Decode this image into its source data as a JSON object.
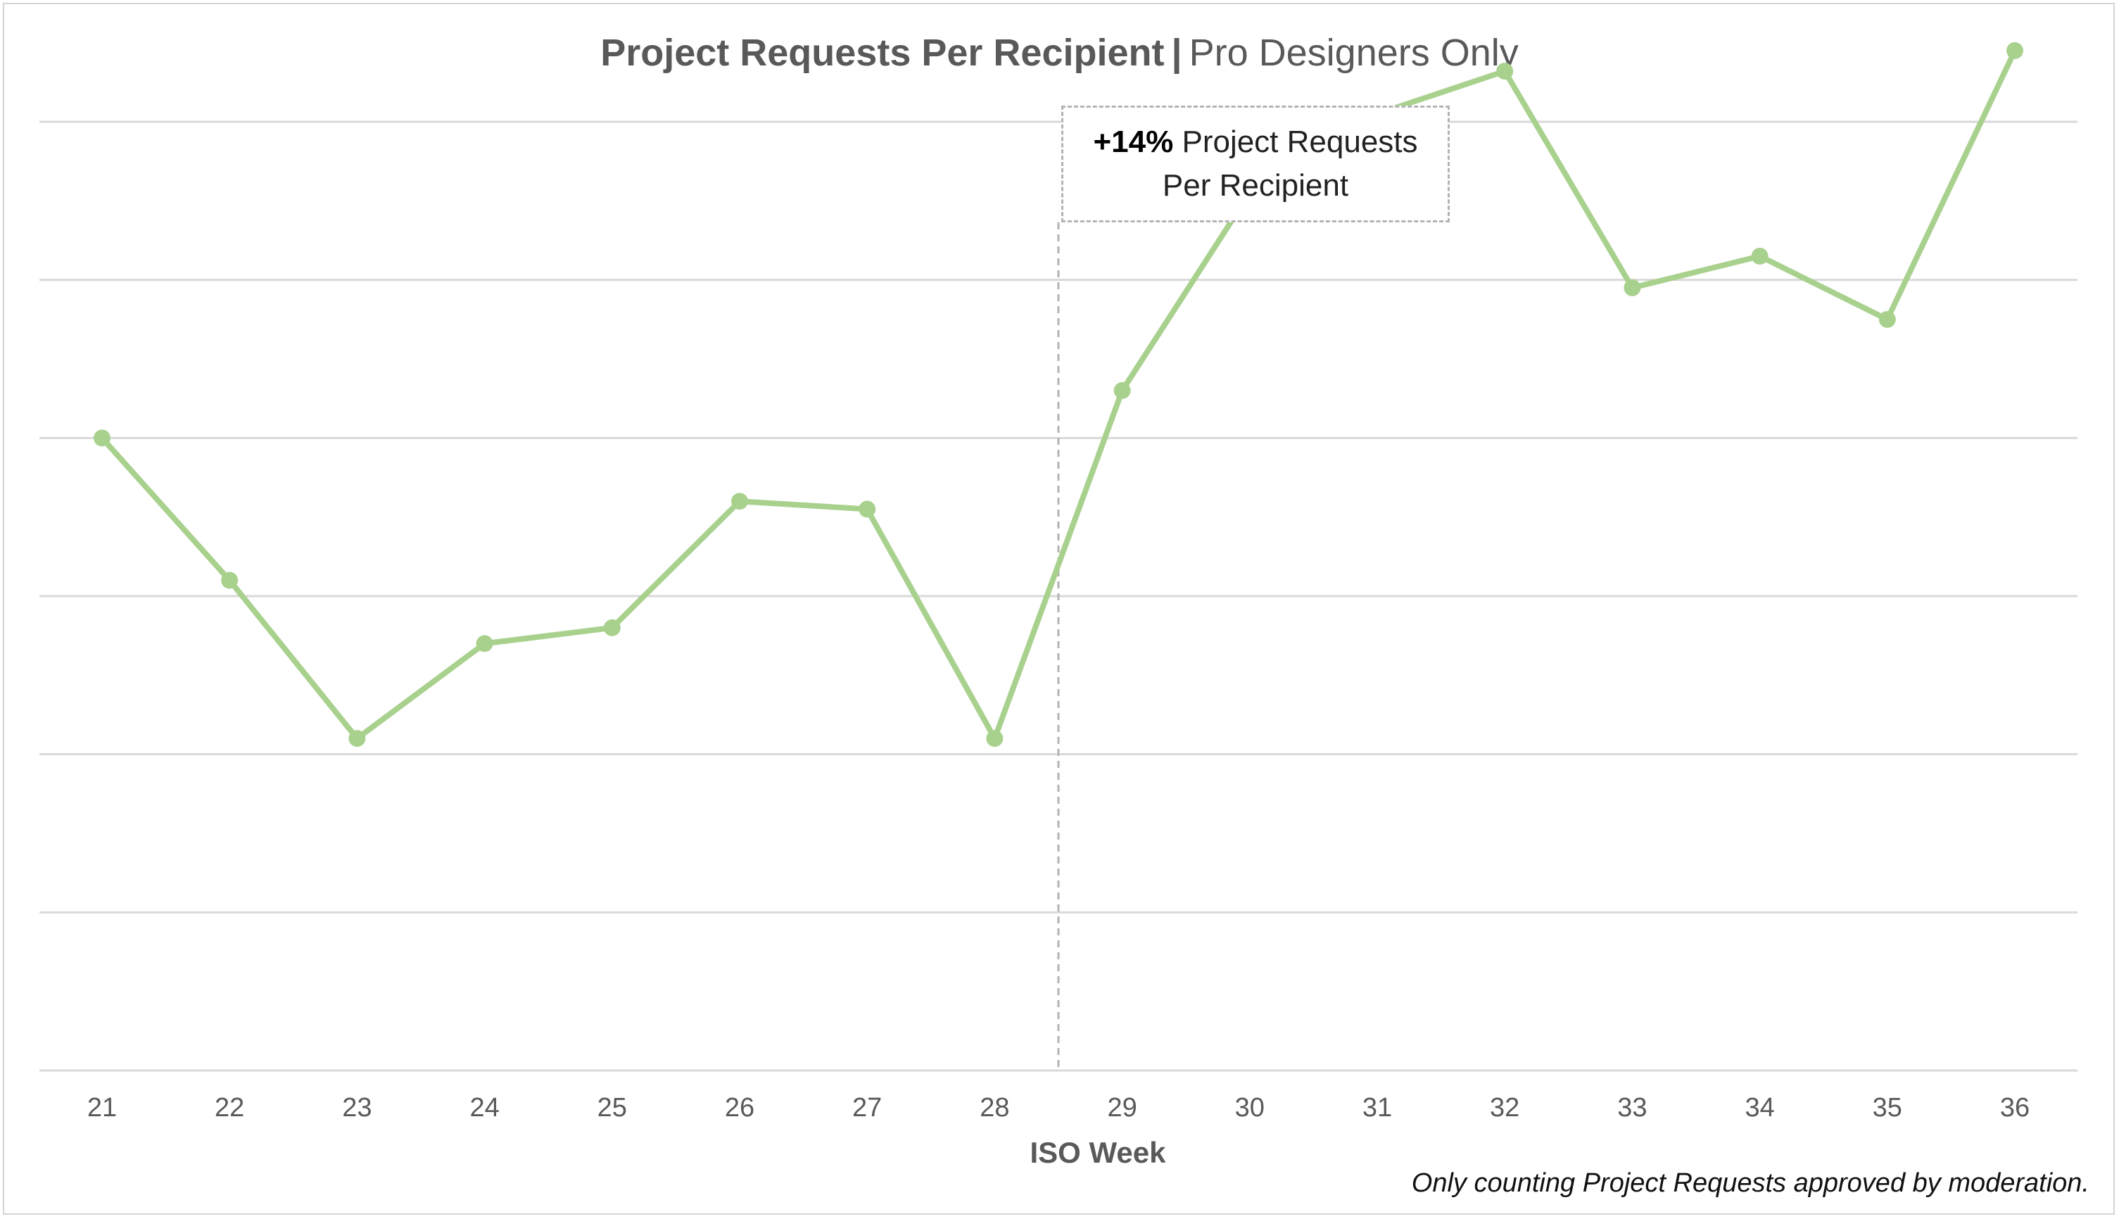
{
  "chart_data": {
    "type": "line",
    "title": "Project Requests Per Recipient",
    "title_separator": "|",
    "subtitle": "Pro Designers Only",
    "xlabel": "ISO Week",
    "ylabel": "",
    "y_tick_labels": "none",
    "grid": "horizontal",
    "categories": [
      "21",
      "22",
      "23",
      "24",
      "25",
      "26",
      "27",
      "28",
      "29",
      "30",
      "31",
      "32",
      "33",
      "34",
      "35",
      "36"
    ],
    "series": [
      {
        "color": "#a9d18e",
        "values": [
          5.0,
          4.1,
          3.1,
          3.7,
          3.8,
          4.6,
          4.55,
          3.1,
          5.3,
          6.55,
          7.05,
          7.32,
          5.95,
          6.15,
          5.75,
          7.45
        ]
      }
    ],
    "ylim": [
      1,
      7.75
    ],
    "y_gridlines": [
      1,
      2,
      3,
      4,
      5,
      6,
      7
    ],
    "vline_between": [
      "28",
      "29"
    ],
    "annotation": {
      "highlight": "+14%",
      "line1_rest": "Project Requests",
      "line2": "Per Recipient"
    },
    "footnote": "Only counting Project Requests approved by moderation."
  },
  "colors": {
    "line": "#a9d18e",
    "grid": "#d9d9d9",
    "text": "#595959",
    "dashed": "#b3b3b3"
  }
}
